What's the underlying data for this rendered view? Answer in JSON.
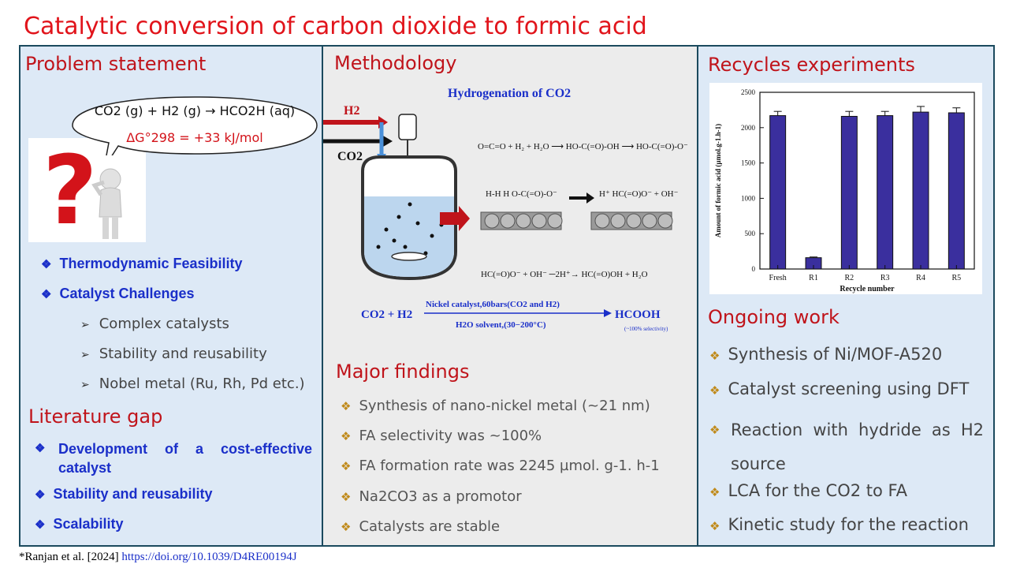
{
  "title": "Catalytic conversion of carbon dioxide to formic acid",
  "problem": {
    "heading": "Problem statement",
    "reaction_text": "CO2 (g) + H2 (g) → HCO2H (aq)",
    "energy_text": "ΔG°298 = +33 kJ/mol",
    "bullets": [
      "Thermodynamic Feasibility",
      "Catalyst Challenges"
    ],
    "sub_bullets": [
      "Complex catalysts",
      "Stability and reusability",
      "Nobel metal (Ru, Rh, Pd etc.)"
    ]
  },
  "gap": {
    "heading": "Literature gap",
    "items": [
      "Development of a cost-effective catalyst",
      "Stability and reusability",
      "Scalability"
    ]
  },
  "methodology": {
    "heading": "Methodology",
    "figure_title": "Hydrogenation of CO2",
    "h2_label": "H2",
    "co2_label": "CO2",
    "equation_left": "CO2 + H2",
    "equation_top": "Nickel catalyst,60bars(CO2 and H2)",
    "equation_bottom": "H2O solvent,(30−200°C)",
    "equation_product": "HCOOH",
    "equation_note": "(~100% selectivity)"
  },
  "findings": {
    "heading": "Major findings",
    "items": [
      "Synthesis of nano-nickel metal (~21 nm)",
      "FA selectivity was ~100%",
      "FA formation rate was 2245 µmol. g-1. h-1",
      "Na2CO3 as a promotor",
      "Catalysts are stable"
    ]
  },
  "recycle": {
    "heading": "Recycles experiments"
  },
  "ongoing": {
    "heading": "Ongoing work",
    "items": [
      "Synthesis of Ni/MOF-A520",
      "Catalyst screening using DFT",
      "Reaction with hydride as H2 source",
      "LCA for the CO2 to FA",
      "Kinetic study for the reaction"
    ]
  },
  "chart_data": {
    "type": "bar",
    "title": "",
    "categories": [
      "Fresh",
      "R1",
      "R2",
      "R3",
      "R4",
      "R5"
    ],
    "values": [
      2170,
      160,
      2160,
      2170,
      2220,
      2210
    ],
    "errors": [
      60,
      10,
      70,
      60,
      80,
      70
    ],
    "xlabel": "Recycle number",
    "ylabel": "Amount of formic acid  (µmol.g-1.h-1)",
    "ylim": [
      0,
      2500
    ],
    "yticks": [
      0,
      500,
      1000,
      1500,
      2000,
      2500
    ]
  },
  "footer": {
    "citation": "*Ranjan et al. [2024]",
    "link": "https://doi.org/10.1039/D4RE00194J"
  }
}
